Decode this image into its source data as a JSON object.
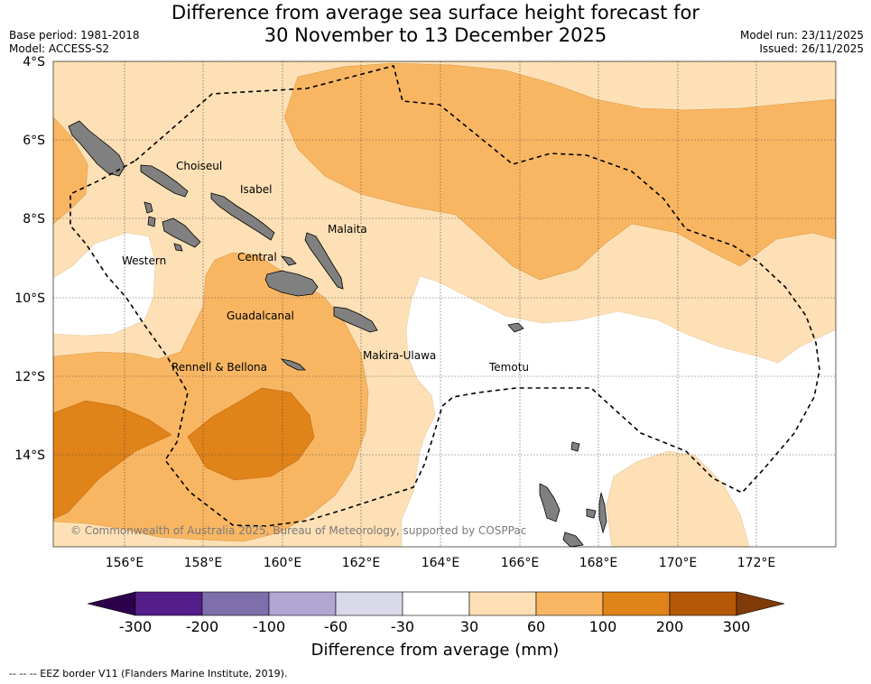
{
  "title_line1": "Difference from average sea surface height forecast for",
  "title_line2": "30 November to 13 December 2025",
  "base_period": "Base period: 1981-2018",
  "model": "Model: ACCESS-S2",
  "model_run": "Model run: 23/11/2025",
  "issued": "Issued: 26/11/2025",
  "lat_labels": [
    "4°S",
    "6°S",
    "8°S",
    "10°S",
    "12°S",
    "14°S"
  ],
  "lon_labels": [
    "156°E",
    "158°E",
    "160°E",
    "162°E",
    "164°E",
    "166°E",
    "168°E",
    "170°E",
    "172°E"
  ],
  "places": [
    "Choiseul",
    "Isabel",
    "Malaita",
    "Western",
    "Central",
    "Guadalcanal",
    "Makira-Ulawa",
    "Rennell & Bellona",
    "Temotu"
  ],
  "copyright": "© Commonwealth of Australia 2025, Bureau of Meteorology, supported by COSPPac",
  "colorbar": {
    "ticks": [
      "-300",
      "-200",
      "-100",
      "-60",
      "-30",
      "30",
      "60",
      "100",
      "200",
      "300"
    ],
    "colors": [
      "#531e8a",
      "#7e6fac",
      "#b1a7d3",
      "#d9d9ea",
      "#ffffff",
      "#fde0b5",
      "#f9b662",
      "#e08318",
      "#b35908"
    ],
    "extend_low_color": "#2d004b",
    "extend_high_color": "#7f3b08",
    "label": "Difference from average (mm)"
  },
  "legend_note": "--  --  -- EEZ border V11 (Flanders Marine Institute, 2019)."
}
